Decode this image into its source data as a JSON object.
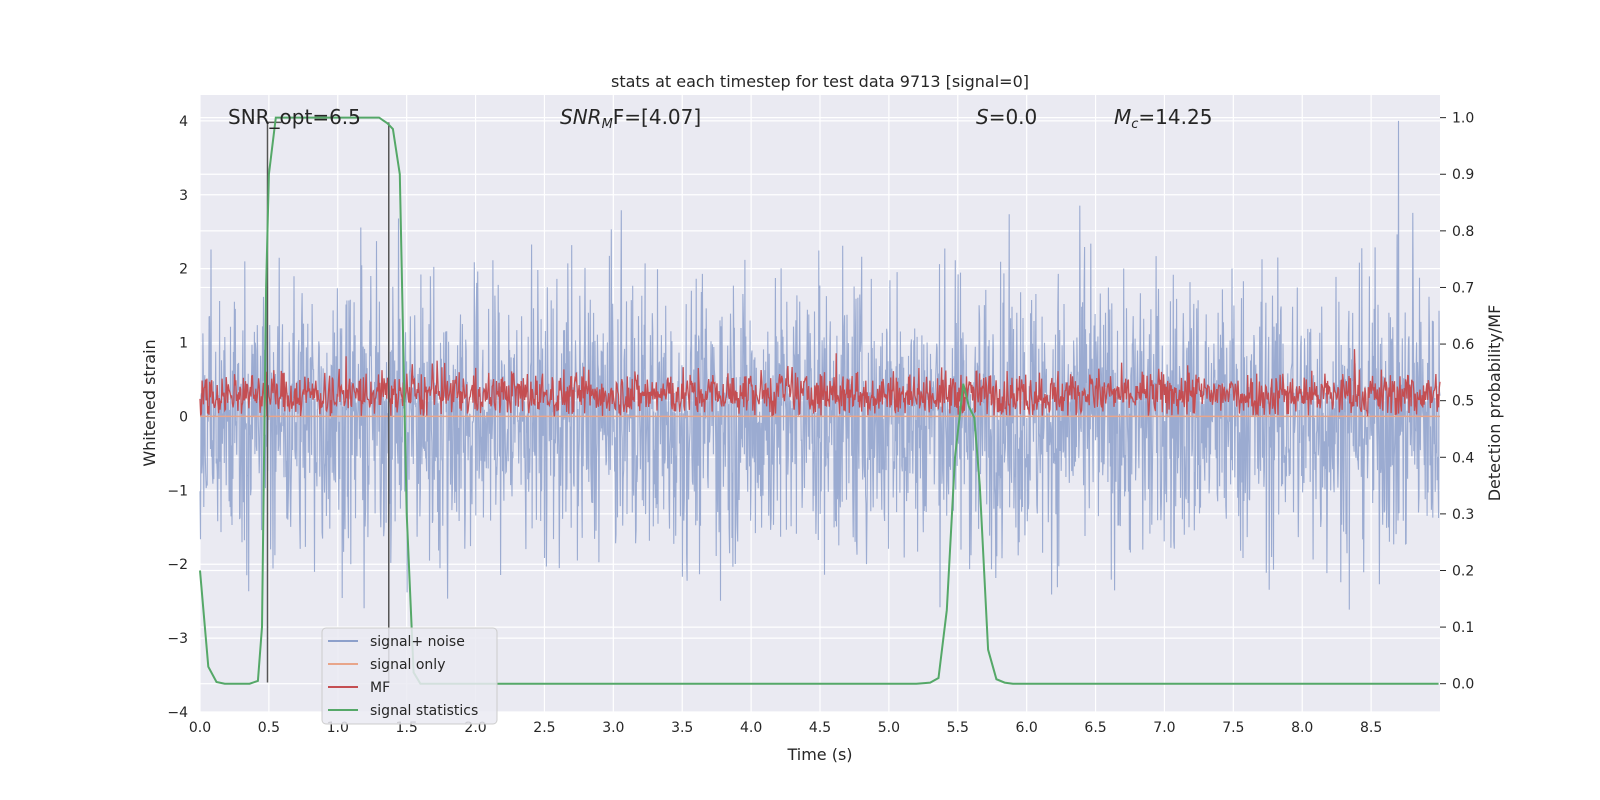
{
  "chart_data": {
    "type": "line",
    "title": "stats at each timestep for test data 9713 [signal=0]",
    "xlabel": "Time (s)",
    "ylabel": "Whitened strain",
    "y2label": "Detection probability/MF",
    "xlim": [
      0.0,
      9.0
    ],
    "ylim": [
      -4,
      4.35
    ],
    "y2lim": [
      -0.05,
      1.04
    ],
    "x_ticks": [
      "0.0",
      "0.5",
      "1.0",
      "1.5",
      "2.0",
      "2.5",
      "3.0",
      "3.5",
      "4.0",
      "4.5",
      "5.0",
      "5.5",
      "6.0",
      "6.5",
      "7.0",
      "7.5",
      "8.0",
      "8.5"
    ],
    "y_ticks": [
      "4",
      "3",
      "2",
      "1",
      "0",
      "−1",
      "−2",
      "−3",
      "−4"
    ],
    "y2_ticks": [
      "1.0",
      "0.9",
      "0.8",
      "0.7",
      "0.6",
      "0.5",
      "0.4",
      "0.3",
      "0.2",
      "0.1",
      "0.0"
    ],
    "annotations": {
      "snr_opt": "SNR_opt=6.5",
      "snr_mf": "SNR",
      "snr_mf_sub": "M",
      "snr_mf_rest": "F=[4.07]",
      "s_stat_var": "S",
      "s_stat_val": "=0.0",
      "mc_var": "M",
      "mc_sub": "c",
      "mc_val": "=14.25"
    },
    "legend": {
      "position": "lower-left",
      "entries": [
        {
          "label": "signal+ noise",
          "color": "#8da0cb"
        },
        {
          "label": "signal only",
          "color": "#e8a58a"
        },
        {
          "label": "MF",
          "color": "#c44e52"
        },
        {
          "label": "signal statistics",
          "color": "#55a868"
        }
      ]
    },
    "grid": true,
    "series": [
      {
        "name": "signal+ noise",
        "axis": "left",
        "color": "#8da0cb",
        "description_range": [
          -3.5,
          4.0
        ]
      },
      {
        "name": "signal only",
        "axis": "left",
        "color": "#e8a58a",
        "y_constant": 0.0
      },
      {
        "name": "MF",
        "axis": "left",
        "color": "#c44e52",
        "description_range": [
          0.0,
          0.95
        ]
      },
      {
        "name": "signal statistics",
        "axis": "right",
        "color": "#55a868",
        "x": [
          0.0,
          0.06,
          0.12,
          0.18,
          0.24,
          0.3,
          0.36,
          0.42,
          0.45,
          0.48,
          0.5,
          0.55,
          0.6,
          0.8,
          1.0,
          1.2,
          1.3,
          1.36,
          1.4,
          1.45,
          1.5,
          1.55,
          1.6,
          2.0,
          3.0,
          4.0,
          5.0,
          5.2,
          5.3,
          5.36,
          5.42,
          5.48,
          5.54,
          5.58,
          5.62,
          5.66,
          5.72,
          5.78,
          5.84,
          5.9,
          6.0,
          7.0,
          8.0,
          8.99
        ],
        "y": [
          0.2,
          0.03,
          0.003,
          0.0,
          0.0,
          0.0,
          0.0,
          0.005,
          0.1,
          0.7,
          0.9,
          1.0,
          1.0,
          1.0,
          1.0,
          1.0,
          1.0,
          0.99,
          0.98,
          0.9,
          0.3,
          0.02,
          0.0,
          0.0,
          0.0,
          0.0,
          0.0,
          0.0,
          0.002,
          0.01,
          0.13,
          0.4,
          0.53,
          0.49,
          0.47,
          0.35,
          0.06,
          0.008,
          0.002,
          0.0,
          0.0,
          0.0,
          0.0,
          0.0
        ]
      }
    ],
    "vertical_markers": {
      "x": [
        0.49,
        1.37
      ],
      "y_range": [
        -3.6,
        3.98
      ]
    }
  }
}
